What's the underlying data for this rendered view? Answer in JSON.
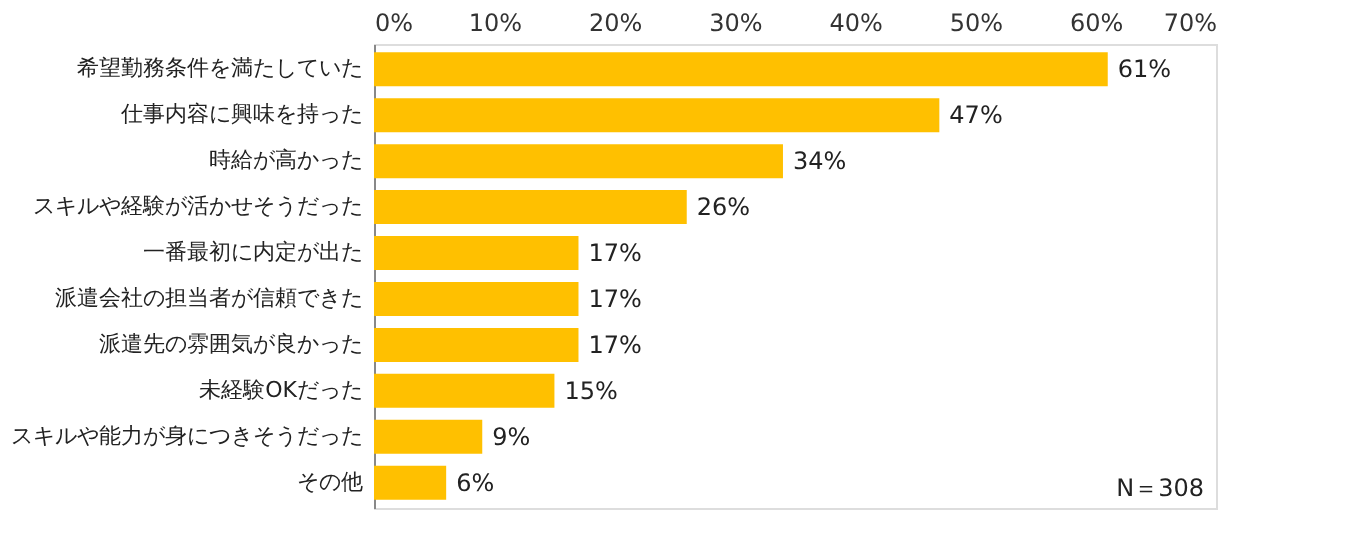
{
  "chart_data": {
    "type": "bar",
    "orientation": "horizontal",
    "categories": [
      "希望勤務条件を満たしていた",
      "仕事内容に興味を持った",
      "時給が高かった",
      "スキルや経験が活かせそうだった",
      "一番最初に内定が出た",
      "派遣会社の担当者が信頼できた",
      "派遣先の雰囲気が良かった",
      "未経験OKだった",
      "スキルや能力が身につきそうだった",
      "その他"
    ],
    "values": [
      61,
      47,
      34,
      26,
      17,
      17,
      17,
      15,
      9,
      6
    ],
    "value_labels": [
      "61%",
      "47%",
      "34%",
      "26%",
      "17%",
      "17%",
      "17%",
      "15%",
      "9%",
      "6%"
    ],
    "color": "#ffc000",
    "xlim": [
      0,
      70
    ],
    "xticks": [
      {
        "value": 0,
        "label": "0%"
      },
      {
        "value": 10,
        "label": "10%"
      },
      {
        "value": 20,
        "label": "20%"
      },
      {
        "value": 30,
        "label": "30%"
      },
      {
        "value": 40,
        "label": "40%"
      },
      {
        "value": 50,
        "label": "50%"
      },
      {
        "value": 60,
        "label": "60%"
      },
      {
        "value": 70,
        "label": "70%"
      }
    ],
    "grid": false,
    "annotations": [
      "N＝308"
    ]
  }
}
